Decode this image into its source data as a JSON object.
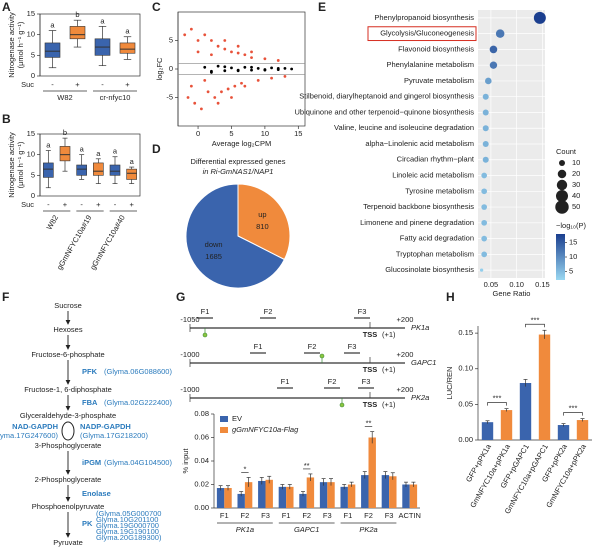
{
  "panel_labels": [
    "A",
    "B",
    "C",
    "D",
    "E",
    "F",
    "G",
    "H"
  ],
  "chart_data": [
    {
      "type": "box",
      "ylabel": "Nitrogenase activity",
      "ylabel_unit": "(μmol h⁻¹ g⁻¹)",
      "ylim": [
        0,
        15
      ],
      "yticks": [
        0,
        5,
        10,
        15
      ],
      "colors": [
        "#3a64ad",
        "#f08a3c",
        "#3a64ad",
        "#f08a3c"
      ],
      "boxes": [
        {
          "min": 2,
          "q1": 4.5,
          "median": 6,
          "q3": 8,
          "max": 11
        },
        {
          "min": 7,
          "q1": 9,
          "median": 10,
          "q3": 12,
          "max": 13.5
        },
        {
          "min": 2.5,
          "q1": 5,
          "median": 7,
          "q3": 9,
          "max": 12
        },
        {
          "min": 4,
          "q1": 5.5,
          "median": 6.5,
          "q3": 8,
          "max": 9.5
        }
      ],
      "letters": [
        "a",
        "b",
        "a",
        "a"
      ],
      "suc_label": "Suc",
      "suc": [
        "-",
        "+",
        "-",
        "+"
      ],
      "groups": [
        "W82",
        "cr-nfyc10"
      ]
    },
    {
      "type": "box",
      "ylabel": "Nitrogenase activity",
      "ylabel_unit": "(μmol h⁻¹ g⁻¹)",
      "ylim": [
        0,
        15
      ],
      "yticks": [
        0,
        5,
        10,
        15
      ],
      "colors": [
        "#3a64ad",
        "#f08a3c",
        "#3a64ad",
        "#f08a3c",
        "#3a64ad",
        "#f08a3c"
      ],
      "boxes": [
        {
          "min": 2,
          "q1": 4.5,
          "median": 6.5,
          "q3": 8,
          "max": 11
        },
        {
          "min": 6,
          "q1": 8.5,
          "median": 10,
          "q3": 12,
          "max": 14
        },
        {
          "min": 4,
          "q1": 5,
          "median": 6.5,
          "q3": 7.5,
          "max": 10
        },
        {
          "min": 3,
          "q1": 5,
          "median": 6,
          "q3": 8,
          "max": 9
        },
        {
          "min": 3,
          "q1": 5,
          "median": 6,
          "q3": 7.5,
          "max": 9.5
        },
        {
          "min": 3,
          "q1": 4,
          "median": 5.5,
          "q3": 6.5,
          "max": 7
        }
      ],
      "letters": [
        "a",
        "b",
        "a",
        "a",
        "a",
        "a"
      ],
      "suc_label": "Suc",
      "suc": [
        "-",
        "+",
        "-",
        "+",
        "-",
        "+"
      ],
      "groups": [
        "W82",
        "gGmNFYC10a#19",
        "gGmNFYC10a#40"
      ]
    },
    {
      "type": "scatter",
      "xlabel": "Average log₂CPM",
      "ylabel": "log₂FC",
      "xlim": [
        -3,
        16
      ],
      "xticks": [
        0,
        5,
        10,
        15
      ],
      "ylim": [
        -10,
        10
      ],
      "yticks": [
        -5,
        0,
        5
      ],
      "hlines": [
        1,
        -1
      ],
      "series": [
        {
          "color": "#e8523a",
          "x": [
            -2,
            -1.5,
            -1,
            -0.5,
            0,
            0.5,
            1,
            1.5,
            2,
            2.5,
            3,
            3.5,
            4,
            4.5,
            5,
            5.5,
            6,
            6.5,
            7,
            8,
            9,
            10,
            11,
            12,
            13,
            -1,
            0,
            1,
            2,
            3,
            4,
            5,
            6,
            7,
            8
          ],
          "y": [
            6,
            -5,
            7,
            -6,
            5,
            -7,
            6,
            -4,
            5,
            -5,
            4,
            -4,
            3.5,
            -3.5,
            3,
            -3,
            2.8,
            -2.5,
            2.5,
            2,
            -2,
            1.8,
            -1.6,
            1.5,
            -1.3,
            -3,
            3,
            -2,
            2.5,
            -6,
            5,
            -5,
            4,
            -3,
            3
          ]
        },
        {
          "color": "#000000",
          "x": [
            1,
            2,
            3,
            4,
            5,
            6,
            7,
            8,
            9,
            10,
            11,
            12,
            13,
            14,
            2,
            4,
            6,
            8,
            10,
            12
          ],
          "y": [
            0.3,
            -0.4,
            0.5,
            -0.3,
            0.2,
            -0.2,
            0.3,
            -0.2,
            0.1,
            -0.1,
            0.2,
            -0.1,
            0.1,
            0,
            -0.6,
            0.4,
            -0.3,
            0.3,
            -0.2,
            0.1
          ]
        }
      ]
    },
    {
      "type": "pie",
      "title": "Differential expressed genes",
      "subtitle": "in Ri-GmNAS1/NAP1",
      "categories": [
        "up",
        "down"
      ],
      "values": [
        810,
        1685
      ],
      "colors": [
        "#f08a3c",
        "#3a64ad"
      ]
    },
    {
      "type": "dot",
      "xlabel": "Gene Ratio",
      "xlim": [
        0.025,
        0.155
      ],
      "xticks": [
        0.05,
        {
          "value": 0.1,
          "label": "0.10"
        },
        0.15
      ],
      "categories": [
        "Phenylpropanoid biosynthesis",
        "Glycolysis/Gluconeogenesis",
        "Flavonoid biosynthesis",
        "Phenylalanine metabolism",
        "Pyruvate metabolism",
        "Stilbenoid, diarylheptanoid and gingerol biosynthesis",
        "Ubiquinone and other terpenoid−quinone biosynthesis",
        "Valine, leucine and isoleucine degradation",
        "alpha−Linolenic acid metabolism",
        "Circadian rhythm−plant",
        "Linoleic acid metabolism",
        "Tyrosine metabolism",
        "Terpenoid backbone biosynthesis",
        "Limonene and pinene degradation",
        "Fatty acid degradation",
        "Tryptophan metabolism",
        "Glucosinolate biosynthesis"
      ],
      "values": [
        0.145,
        0.068,
        0.055,
        0.055,
        0.045,
        0.04,
        0.04,
        0.04,
        0.04,
        0.04,
        0.037,
        0.037,
        0.037,
        0.037,
        0.037,
        0.037,
        0.032
      ],
      "counts": [
        40,
        20,
        16,
        15,
        12,
        10,
        10,
        10,
        10,
        10,
        9,
        9,
        9,
        9,
        9,
        9,
        3
      ],
      "logp": [
        18,
        12,
        14,
        12,
        8,
        6,
        6,
        6,
        6,
        6,
        5,
        5,
        5,
        5,
        5,
        5,
        3
      ],
      "highlight": 1,
      "size_title": "Count",
      "size_legend": [
        10,
        20,
        30,
        40,
        50
      ],
      "color_title": "−log₁₀(P)",
      "clim": [
        2,
        18
      ],
      "color_ticks": [
        5,
        10,
        15
      ],
      "color_low": "#9ad8f2",
      "color_high": "#1b3f8f"
    },
    {
      "type": "bar",
      "ylabel": "% input",
      "ylim": [
        0,
        0.08
      ],
      "yticks": [
        {
          "value": 0,
          "label": "0.00"
        },
        {
          "value": 0.02,
          "label": "0.02"
        },
        {
          "value": 0.04,
          "label": "0.04"
        },
        {
          "value": 0.06,
          "label": "0.06"
        },
        {
          "value": 0.08,
          "label": "0.08"
        }
      ],
      "categories": [
        "F1",
        "F2",
        "F3",
        "F1",
        "F2",
        "F3",
        "F1",
        "F2",
        "F3",
        "ACTIN"
      ],
      "groups": [
        "PK1a",
        "GAPC1",
        "PK2a"
      ],
      "series": [
        {
          "name": "EV",
          "color": "#3a64ad",
          "values": [
            0.017,
            0.012,
            0.023,
            0.018,
            0.012,
            0.022,
            0.018,
            0.028,
            0.028,
            0.02
          ],
          "errors": [
            0.002,
            0.002,
            0.003,
            0.002,
            0.002,
            0.003,
            0.002,
            0.003,
            0.003,
            0.002
          ]
        },
        {
          "name": "gGmNFYC10a-Flag",
          "color": "#f08a3c",
          "values": [
            0.017,
            0.022,
            0.024,
            0.018,
            0.026,
            0.022,
            0.02,
            0.06,
            0.027,
            0.02
          ],
          "errors": [
            0.002,
            0.004,
            0.003,
            0.002,
            0.003,
            0.003,
            0.002,
            0.005,
            0.003,
            0.002
          ]
        }
      ],
      "significance": [
        {
          "index": 1,
          "label": "*"
        },
        {
          "index": 4,
          "label": "**"
        },
        {
          "index": 7,
          "label": "**"
        }
      ]
    },
    {
      "type": "bar",
      "ylabel": "LUC/REN",
      "ylim": [
        0,
        0.16
      ],
      "yticks": [
        {
          "value": 0,
          "label": "0.00"
        },
        0.05,
        {
          "value": 0.1,
          "label": "0.10"
        },
        0.15
      ],
      "categories": [
        "GFP+pPK1a",
        "GmNFYC10a+pPK1a",
        "GFP+pGAPC1",
        "GmNFYC10a+pGAPC1",
        "GFP+pPK2a",
        "GmNFYC10a+pPK2a"
      ],
      "values": [
        0.025,
        0.042,
        0.08,
        0.148,
        0.021,
        0.028
      ],
      "errors": [
        0.002,
        0.002,
        0.005,
        0.006,
        0.002,
        0.002
      ],
      "colors": [
        "#3a64ad",
        "#f08a3c",
        "#3a64ad",
        "#f08a3c",
        "#3a64ad",
        "#f08a3c"
      ],
      "significance": [
        {
          "index": 0,
          "label": "***"
        },
        {
          "index": 2,
          "label": "***"
        },
        {
          "index": 4,
          "label": "***"
        }
      ]
    }
  ],
  "promoters": [
    {
      "name": "PK1a",
      "start": "-1050",
      "end": "+200",
      "fragments": [
        "F1",
        "F2",
        "F3"
      ],
      "tss": "TSS",
      "tss_pos": "(+1)"
    },
    {
      "name": "GAPC1",
      "start": "-1000",
      "end": "+200",
      "fragments": [
        "F1",
        "F2",
        "F3"
      ],
      "tss": "TSS",
      "tss_pos": "(+1)"
    },
    {
      "name": "PK2a",
      "start": "-1000",
      "end": "+200",
      "fragments": [
        "F1",
        "F2",
        "F3"
      ],
      "tss": "TSS",
      "tss_pos": "(+1)"
    }
  ],
  "pathway": {
    "metabolites": [
      "Sucrose",
      "Hexoses",
      "Fructose-6-phosphate",
      "Fructose-1, 6-diphosphate",
      "Glyceraldehyde-3-phosphate",
      "3-Phosphoglycerate",
      "2-Phosphoglycerate",
      "Phosphoenolpyruvate",
      "Pyruvate"
    ],
    "enzymes": [
      {
        "name": "PFK",
        "genes": [
          "(Glyma.06G088600)"
        ]
      },
      {
        "name": "FBA",
        "genes": [
          "(Glyma.02G222400)"
        ]
      },
      {
        "name": "NAD-GAPDH",
        "genes": [
          "(Glyma.17G247600)"
        ]
      },
      {
        "name": "NADP-GAPDH",
        "genes": [
          "(Glyma.17G218200)"
        ]
      },
      {
        "name": "iPGM",
        "genes": [
          "(Glyma.04G104500)"
        ]
      },
      {
        "name": "Enolase",
        "genes": []
      },
      {
        "name": "PK",
        "genes": [
          "(Glyma.05G000700",
          "Glyma.10G201100",
          "Glyma.19G000700",
          "Glyma.19G190100",
          "Glyma.20G189300)"
        ]
      }
    ]
  }
}
